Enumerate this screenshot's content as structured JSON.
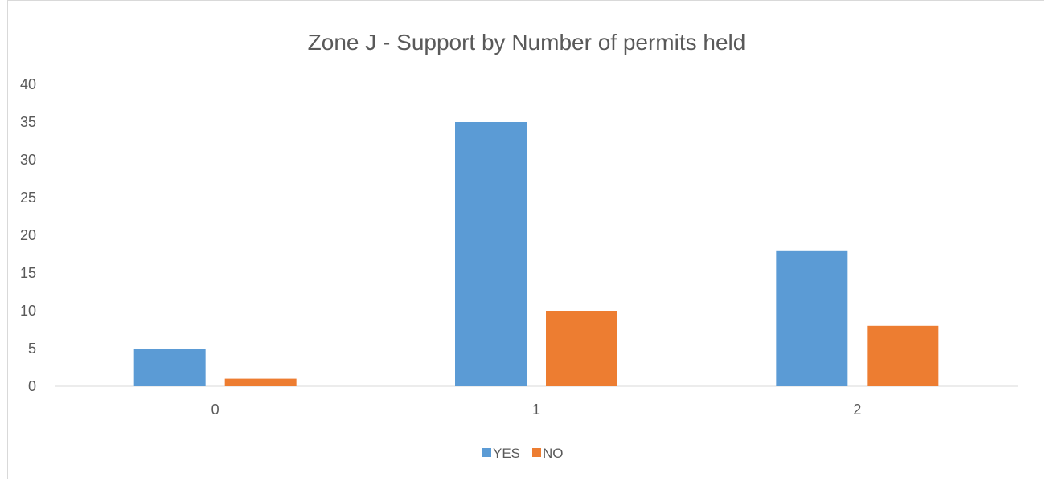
{
  "chart_data": {
    "type": "bar",
    "title": "Zone J - Support by Number of permits held",
    "xlabel": "",
    "ylabel": "",
    "categories": [
      "0",
      "1",
      "2"
    ],
    "series": [
      {
        "name": "YES",
        "values": [
          5,
          35,
          18
        ],
        "color": "#5b9bd5"
      },
      {
        "name": "NO",
        "values": [
          1,
          10,
          8
        ],
        "color": "#ed7d31"
      }
    ],
    "ylim": [
      0,
      40
    ],
    "yticks": [
      0,
      5,
      10,
      15,
      20,
      25,
      30,
      35,
      40
    ],
    "grid": false,
    "legend_position": "bottom"
  }
}
